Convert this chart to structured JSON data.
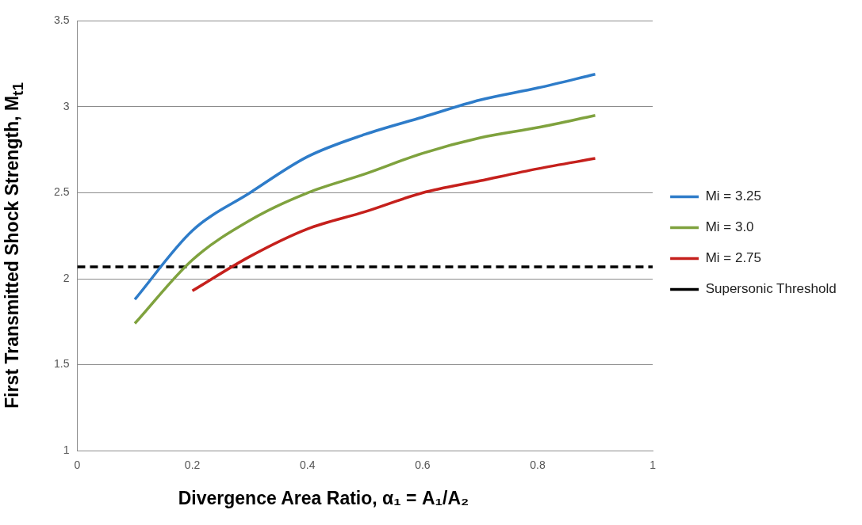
{
  "chart_data": {
    "type": "line",
    "xlabel": "Divergence Area Ratio, α₁ = A₁/A₂",
    "ylabel": "First Transmitted  Shock Strength, M$_{t1}$",
    "xlim": [
      0,
      1
    ],
    "xticks": [
      0,
      0.2,
      0.4,
      0.6,
      0.8,
      1
    ],
    "ylim": [
      1,
      3.5
    ],
    "yticks": [
      1,
      1.5,
      2,
      2.5,
      3,
      3.5
    ],
    "grid": "y",
    "legend": "right",
    "marker": "none",
    "line_style": "solid",
    "series": [
      {
        "name": "Mi = 3.25",
        "color": "#2e7cc9",
        "x": [
          0.1,
          0.2,
          0.3,
          0.4,
          0.5,
          0.6,
          0.7,
          0.8,
          0.9
        ],
        "values": [
          1.88,
          2.28,
          2.5,
          2.71,
          2.84,
          2.94,
          3.04,
          3.11,
          3.19
        ]
      },
      {
        "name": "Mi = 3.0",
        "color": "#7fa23e",
        "x": [
          0.1,
          0.2,
          0.3,
          0.4,
          0.5,
          0.6,
          0.7,
          0.8,
          0.9
        ],
        "values": [
          1.74,
          2.11,
          2.34,
          2.5,
          2.61,
          2.73,
          2.82,
          2.88,
          2.95
        ]
      },
      {
        "name": "Mi = 2.75",
        "color": "#c5201c",
        "x": [
          0.2,
          0.3,
          0.4,
          0.5,
          0.6,
          0.7,
          0.8,
          0.9
        ],
        "values": [
          1.93,
          2.13,
          2.29,
          2.39,
          2.5,
          2.57,
          2.64,
          2.7
        ]
      },
      {
        "name": "Supersonic Threshold",
        "color": "#000000",
        "line_style": "dashed",
        "x": [
          0,
          1
        ],
        "values": [
          2.07,
          2.07
        ]
      }
    ]
  }
}
